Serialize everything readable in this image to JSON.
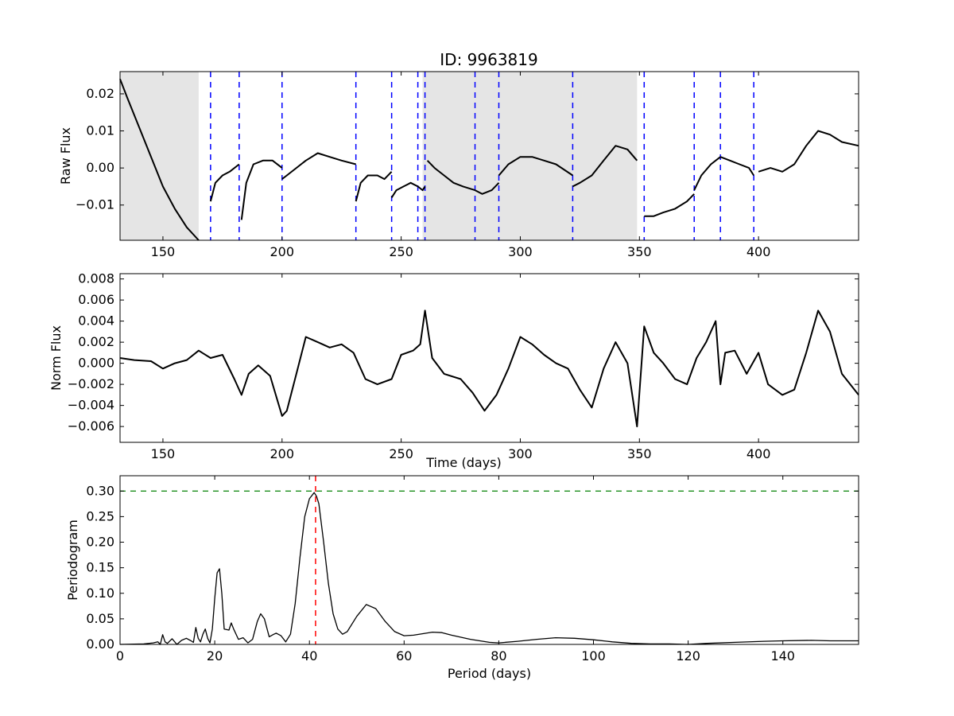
{
  "figure": {
    "title": "ID: 9963819"
  },
  "chart_data": [
    {
      "type": "line",
      "ylabel": "Raw Flux",
      "xlabel": "",
      "xlim": [
        132,
        442
      ],
      "ylim": [
        -0.0195,
        0.026
      ],
      "xticks": [
        150,
        200,
        250,
        300,
        350,
        400
      ],
      "xtick_labels": [
        "150",
        "200",
        "250",
        "300",
        "350",
        "400"
      ],
      "yticks": [
        0.02,
        0.01,
        0.0,
        -0.01
      ],
      "ytick_labels": [
        "0.02",
        "0.01",
        "0.00",
        "−0.01"
      ],
      "shaded_spans": [
        [
          132,
          165
        ],
        [
          259,
          349
        ]
      ],
      "vlines": [
        170,
        182,
        200,
        231,
        246,
        257,
        260,
        281,
        291,
        322,
        352,
        373,
        384,
        398
      ],
      "vline_color": "#0000ff",
      "series": [
        {
          "x": [
            132,
            135,
            140,
            145,
            150,
            155,
            160,
            165
          ],
          "values": [
            0.024,
            0.019,
            0.011,
            0.003,
            -0.005,
            -0.011,
            -0.016,
            -0.0195
          ]
        },
        {
          "x": [
            170,
            172,
            175,
            178,
            182
          ],
          "values": [
            -0.009,
            -0.004,
            -0.002,
            -0.001,
            0.001
          ]
        },
        {
          "x": [
            183,
            185,
            188,
            192,
            196,
            200
          ],
          "values": [
            -0.014,
            -0.004,
            0.001,
            0.002,
            0.002,
            0.0
          ]
        },
        {
          "x": [
            200,
            202,
            206,
            210,
            215,
            220,
            225,
            231
          ],
          "values": [
            -0.003,
            -0.002,
            0.0,
            0.002,
            0.004,
            0.003,
            0.002,
            0.001
          ]
        },
        {
          "x": [
            231,
            233,
            236,
            240,
            243,
            246
          ],
          "values": [
            -0.009,
            -0.004,
            -0.002,
            -0.002,
            -0.003,
            -0.001
          ]
        },
        {
          "x": [
            246,
            248,
            251,
            254,
            257
          ],
          "values": [
            -0.008,
            -0.006,
            -0.005,
            -0.004,
            -0.005
          ]
        },
        {
          "x": [
            257,
            259,
            260
          ],
          "values": [
            -0.005,
            -0.006,
            -0.005
          ]
        },
        {
          "x": [
            261,
            264,
            268,
            272,
            276,
            281
          ],
          "values": [
            0.002,
            0.0,
            -0.002,
            -0.004,
            -0.005,
            -0.006
          ]
        },
        {
          "x": [
            281,
            284,
            288,
            291
          ],
          "values": [
            -0.006,
            -0.007,
            -0.006,
            -0.004
          ]
        },
        {
          "x": [
            291,
            295,
            300,
            305,
            310,
            315,
            322
          ],
          "values": [
            -0.002,
            0.001,
            0.003,
            0.003,
            0.002,
            0.001,
            -0.002
          ]
        },
        {
          "x": [
            322,
            325,
            330,
            335,
            340,
            345,
            349
          ],
          "values": [
            -0.005,
            -0.004,
            -0.002,
            0.002,
            0.006,
            0.005,
            0.002
          ]
        },
        {
          "x": [
            352,
            356,
            360,
            365,
            370,
            373
          ],
          "values": [
            -0.013,
            -0.013,
            -0.012,
            -0.011,
            -0.009,
            -0.007
          ]
        },
        {
          "x": [
            373,
            376,
            380,
            384
          ],
          "values": [
            -0.006,
            -0.002,
            0.001,
            0.003
          ]
        },
        {
          "x": [
            384,
            388,
            392,
            396,
            398
          ],
          "values": [
            0.003,
            0.002,
            0.001,
            0.0,
            -0.002
          ]
        },
        {
          "x": [
            400,
            405,
            410,
            415,
            420,
            425,
            430,
            435,
            442
          ],
          "values": [
            -0.001,
            0.0,
            -0.001,
            0.001,
            0.006,
            0.01,
            0.009,
            0.007,
            0.006
          ]
        }
      ]
    },
    {
      "type": "line",
      "ylabel": "Norm Flux",
      "xlabel": "Time (days)",
      "xlim": [
        132,
        442
      ],
      "ylim": [
        -0.0075,
        0.0085
      ],
      "xticks": [
        150,
        200,
        250,
        300,
        350,
        400
      ],
      "xtick_labels": [
        "150",
        "200",
        "250",
        "300",
        "350",
        "400"
      ],
      "yticks": [
        0.008,
        0.006,
        0.004,
        0.002,
        0.0,
        -0.002,
        -0.004,
        -0.006
      ],
      "ytick_labels": [
        "0.008",
        "0.006",
        "0.004",
        "0.002",
        "0.000",
        "−0.002",
        "−0.004",
        "−0.006"
      ],
      "series": [
        {
          "x": [
            132,
            138,
            145,
            150,
            155,
            160,
            165,
            170,
            175,
            180,
            183,
            186,
            190,
            195,
            200,
            202,
            206,
            210,
            215,
            220,
            225,
            230,
            235,
            240,
            246,
            250,
            255,
            258,
            260,
            263,
            268,
            275,
            280,
            285,
            290,
            295,
            300,
            305,
            310,
            315,
            320,
            325,
            330,
            335,
            340,
            345,
            349,
            352,
            356,
            360,
            365,
            370,
            374,
            378,
            382,
            384,
            386,
            390,
            395,
            400,
            404,
            410,
            415,
            420,
            425,
            430,
            435,
            442
          ],
          "values": [
            0.0005,
            0.0003,
            0.0002,
            -0.0005,
            0.0,
            0.0003,
            0.0012,
            0.0005,
            0.0008,
            -0.0015,
            -0.003,
            -0.001,
            -0.0002,
            -0.0012,
            -0.005,
            -0.0045,
            -0.001,
            0.0025,
            0.002,
            0.0015,
            0.0018,
            0.001,
            -0.0015,
            -0.002,
            -0.0015,
            0.0008,
            0.0012,
            0.0018,
            0.005,
            0.0005,
            -0.001,
            -0.0015,
            -0.0028,
            -0.0045,
            -0.003,
            -0.0005,
            0.0025,
            0.0018,
            0.0008,
            0.0,
            -0.0005,
            -0.0025,
            -0.0042,
            -0.0005,
            0.002,
            0.0,
            -0.006,
            0.0035,
            0.001,
            0.0,
            -0.0015,
            -0.002,
            0.0005,
            0.002,
            0.004,
            -0.002,
            0.001,
            0.0012,
            -0.001,
            0.001,
            -0.002,
            -0.003,
            -0.0025,
            0.001,
            0.005,
            0.003,
            -0.001,
            -0.003
          ]
        }
      ]
    },
    {
      "type": "line",
      "ylabel": "Periodogram",
      "xlabel": "Period (days)",
      "xlim": [
        0,
        156
      ],
      "ylim": [
        0,
        0.33
      ],
      "xticks": [
        0,
        20,
        40,
        60,
        80,
        100,
        120,
        140
      ],
      "xtick_labels": [
        "0",
        "20",
        "40",
        "60",
        "80",
        "100",
        "120",
        "140"
      ],
      "yticks": [
        0.0,
        0.05,
        0.1,
        0.15,
        0.2,
        0.25,
        0.3
      ],
      "ytick_labels": [
        "0.00",
        "0.05",
        "0.10",
        "0.15",
        "0.20",
        "0.25",
        "0.30"
      ],
      "hline": 0.3,
      "hline_color": "#008000",
      "vline": 41.3,
      "vline_color": "#ff0000",
      "series": [
        {
          "x": [
            0,
            5,
            7,
            8,
            8.5,
            9,
            9.5,
            10,
            11,
            12,
            13,
            14,
            15,
            15.5,
            16,
            16.5,
            17,
            17.5,
            18,
            18.5,
            19,
            19.5,
            20,
            20.5,
            21,
            21.5,
            22,
            23,
            23.5,
            24,
            25,
            26,
            27,
            28,
            29,
            29.7,
            30.5,
            31.5,
            32.5,
            33,
            34,
            35,
            36,
            37,
            38,
            39,
            40,
            41,
            41.5,
            42,
            43,
            44,
            45,
            46,
            47,
            48,
            50,
            52,
            54,
            56,
            58,
            60,
            62,
            64,
            66,
            68,
            70,
            74,
            78,
            80,
            84,
            88,
            92,
            96,
            100,
            104,
            108,
            112,
            116,
            120,
            124,
            130,
            136,
            140,
            146,
            150,
            156
          ],
          "values": [
            0.0,
            0.001,
            0.003,
            0.005,
            0.0,
            0.019,
            0.005,
            0.002,
            0.011,
            0.0,
            0.008,
            0.012,
            0.007,
            0.004,
            0.033,
            0.012,
            0.005,
            0.02,
            0.03,
            0.012,
            0.003,
            0.03,
            0.09,
            0.14,
            0.148,
            0.1,
            0.03,
            0.028,
            0.042,
            0.03,
            0.01,
            0.013,
            0.003,
            0.01,
            0.045,
            0.06,
            0.05,
            0.015,
            0.02,
            0.022,
            0.017,
            0.005,
            0.02,
            0.08,
            0.17,
            0.25,
            0.285,
            0.297,
            0.29,
            0.275,
            0.2,
            0.12,
            0.06,
            0.03,
            0.02,
            0.025,
            0.055,
            0.078,
            0.07,
            0.045,
            0.025,
            0.017,
            0.018,
            0.021,
            0.024,
            0.023,
            0.018,
            0.01,
            0.004,
            0.003,
            0.006,
            0.01,
            0.013,
            0.012,
            0.009,
            0.005,
            0.002,
            0.001,
            0.001,
            0.0,
            0.002,
            0.004,
            0.006,
            0.007,
            0.008,
            0.007,
            0.007
          ]
        }
      ]
    }
  ]
}
